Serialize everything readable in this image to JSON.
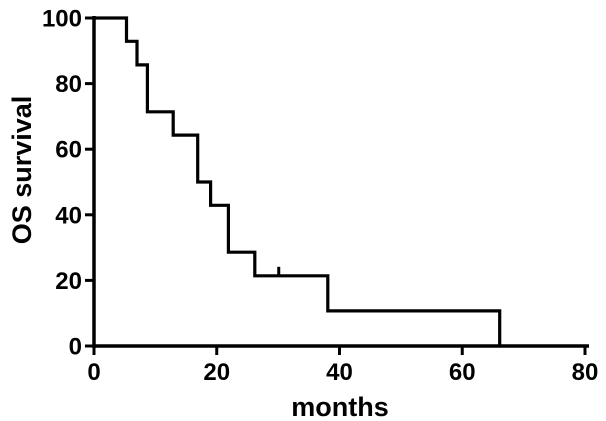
{
  "chart_data": {
    "type": "line",
    "subtype": "kaplan-meier-step-curve",
    "title": "",
    "xlabel": "months",
    "ylabel": "OS survival",
    "xlim": [
      0,
      80
    ],
    "ylim": [
      0,
      100
    ],
    "x_ticks": [
      0,
      20,
      40,
      60,
      80
    ],
    "y_ticks": [
      0,
      20,
      40,
      60,
      80,
      100
    ],
    "grid": false,
    "legend": false,
    "line_color": "#000000",
    "background_color": "#ffffff",
    "series": [
      {
        "name": "OS survival",
        "step_points": [
          [
            0,
            100
          ],
          [
            5.3,
            100
          ],
          [
            5.3,
            92.9
          ],
          [
            7.0,
            92.9
          ],
          [
            7.0,
            85.7
          ],
          [
            8.7,
            85.7
          ],
          [
            8.7,
            71.4
          ],
          [
            12.9,
            71.4
          ],
          [
            12.9,
            64.3
          ],
          [
            16.9,
            64.3
          ],
          [
            16.9,
            50
          ],
          [
            19.0,
            50
          ],
          [
            19.0,
            42.9
          ],
          [
            21.9,
            42.9
          ],
          [
            21.9,
            28.6
          ],
          [
            26.2,
            28.6
          ],
          [
            26.2,
            21.4
          ],
          [
            38.1,
            21.4
          ],
          [
            38.1,
            10.7
          ],
          [
            66.1,
            10.7
          ],
          [
            66.1,
            0
          ]
        ],
        "censor_marks": [
          [
            30.1,
            21.4
          ]
        ]
      }
    ]
  }
}
